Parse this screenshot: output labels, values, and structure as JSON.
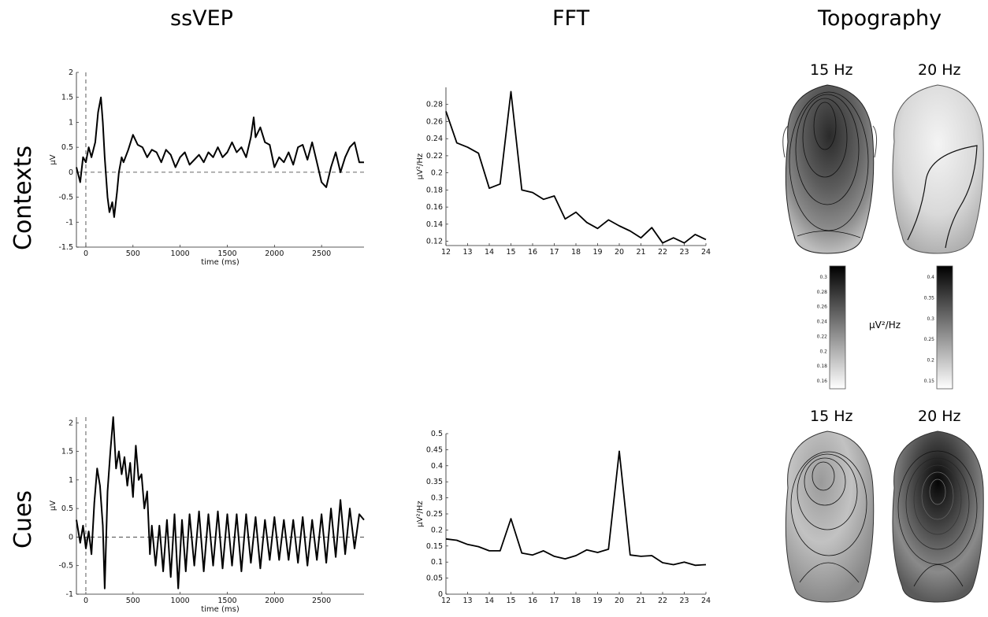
{
  "columns": {
    "ssvep": "ssVEP",
    "fft": "FFT",
    "topography": "Topography"
  },
  "rows": {
    "contexts": "Contexts",
    "cues": "Cues"
  },
  "topography": {
    "contexts_left_freq": "15 Hz",
    "contexts_right_freq": "20 Hz",
    "cues_left_freq": "15 Hz",
    "cues_right_freq": "20 Hz",
    "colorbar_unit": "µV²/Hz",
    "colorbar_left_ticks": [
      "0.3",
      "0.28",
      "0.26",
      "0.24",
      "0.22",
      "0.2",
      "0.18",
      "0.16"
    ],
    "colorbar_right_ticks": [
      "0.4",
      "0.35",
      "0.3",
      "0.25",
      "0.2",
      "0.15"
    ]
  },
  "chart_data": [
    {
      "id": "contexts_ssvep",
      "type": "line",
      "xlabel": "time (ms)",
      "ylabel": "µV",
      "xlim": [
        -100,
        2950
      ],
      "ylim": [
        -1.5,
        2
      ],
      "xticks": [
        0,
        500,
        1000,
        1500,
        2000,
        2500
      ],
      "yticks": [
        -1.5,
        -1,
        -0.5,
        0,
        0.5,
        1,
        1.5,
        2
      ],
      "reference_lines": {
        "y": 0,
        "x": 0
      },
      "series": [
        {
          "x": [
            -100,
            -60,
            -30,
            0,
            30,
            60,
            100,
            130,
            160,
            180,
            200,
            230,
            250,
            280,
            300,
            330,
            350,
            380,
            400,
            450,
            500,
            550,
            600,
            650,
            700,
            750,
            800,
            850,
            900,
            950,
            1000,
            1050,
            1100,
            1150,
            1200,
            1250,
            1300,
            1350,
            1400,
            1450,
            1500,
            1550,
            1600,
            1650,
            1700,
            1750,
            1780,
            1800,
            1850,
            1900,
            1950,
            2000,
            2050,
            2100,
            2150,
            2200,
            2250,
            2300,
            2350,
            2400,
            2450,
            2500,
            2550,
            2600,
            2650,
            2700,
            2750,
            2800,
            2850,
            2900,
            2950
          ],
          "y": [
            0.1,
            -0.2,
            0.3,
            0.2,
            0.5,
            0.3,
            0.6,
            1.2,
            1.5,
            1.0,
            0.3,
            -0.5,
            -0.8,
            -0.6,
            -0.9,
            -0.4,
            0.0,
            0.3,
            0.2,
            0.45,
            0.75,
            0.55,
            0.5,
            0.3,
            0.45,
            0.4,
            0.2,
            0.45,
            0.35,
            0.1,
            0.3,
            0.4,
            0.15,
            0.25,
            0.35,
            0.2,
            0.4,
            0.3,
            0.5,
            0.3,
            0.4,
            0.6,
            0.4,
            0.5,
            0.3,
            0.7,
            1.1,
            0.7,
            0.9,
            0.6,
            0.55,
            0.1,
            0.3,
            0.2,
            0.4,
            0.15,
            0.5,
            0.55,
            0.25,
            0.6,
            0.2,
            -0.2,
            -0.3,
            0.1,
            0.4,
            0.0,
            0.3,
            0.5,
            0.6,
            0.2,
            0.2
          ]
        }
      ]
    },
    {
      "id": "contexts_fft",
      "type": "line",
      "xlabel": "",
      "ylabel": "µV²/Hz",
      "xlim": [
        12,
        24
      ],
      "ylim": [
        0.115,
        0.3
      ],
      "xticks": [
        12,
        13,
        14,
        15,
        16,
        17,
        18,
        19,
        20,
        21,
        22,
        23,
        24
      ],
      "yticks": [
        0.12,
        0.14,
        0.16,
        0.18,
        0.2,
        0.22,
        0.24,
        0.26,
        0.28
      ],
      "series": [
        {
          "x": [
            12,
            12.5,
            13,
            13.5,
            14,
            14.5,
            15,
            15.5,
            16,
            16.5,
            17,
            17.5,
            18,
            18.5,
            19,
            19.5,
            20,
            20.5,
            21,
            21.5,
            22,
            22.5,
            23,
            23.5,
            24
          ],
          "y": [
            0.272,
            0.235,
            0.23,
            0.223,
            0.182,
            0.187,
            0.295,
            0.18,
            0.177,
            0.169,
            0.173,
            0.146,
            0.154,
            0.142,
            0.135,
            0.145,
            0.138,
            0.132,
            0.124,
            0.136,
            0.118,
            0.124,
            0.118,
            0.128,
            0.122
          ]
        }
      ]
    },
    {
      "id": "cues_ssvep",
      "type": "line",
      "xlabel": "time (ms)",
      "ylabel": "µV",
      "xlim": [
        -100,
        2950
      ],
      "ylim": [
        -1,
        2.1
      ],
      "xticks": [
        0,
        500,
        1000,
        1500,
        2000,
        2500
      ],
      "yticks": [
        -1,
        -0.5,
        0,
        0.5,
        1,
        1.5,
        2
      ],
      "reference_lines": {
        "y": 0,
        "x": 0
      },
      "series": [
        {
          "x": [
            -100,
            -60,
            -30,
            0,
            30,
            60,
            90,
            120,
            150,
            180,
            200,
            230,
            260,
            290,
            320,
            350,
            380,
            410,
            440,
            470,
            500,
            530,
            560,
            590,
            620,
            650,
            680,
            700,
            740,
            780,
            820,
            860,
            900,
            940,
            980,
            1020,
            1060,
            1100,
            1150,
            1200,
            1250,
            1300,
            1350,
            1400,
            1450,
            1500,
            1550,
            1600,
            1650,
            1700,
            1750,
            1800,
            1850,
            1900,
            1950,
            2000,
            2050,
            2100,
            2150,
            2200,
            2250,
            2300,
            2350,
            2400,
            2450,
            2500,
            2550,
            2600,
            2650,
            2700,
            2750,
            2800,
            2850,
            2900,
            2950
          ],
          "y": [
            0.3,
            -0.1,
            0.2,
            -0.2,
            0.1,
            -0.3,
            0.6,
            1.2,
            0.9,
            0.2,
            -0.9,
            0.8,
            1.5,
            2.1,
            1.2,
            1.5,
            1.1,
            1.4,
            0.9,
            1.3,
            0.7,
            1.6,
            1.0,
            1.1,
            0.5,
            0.8,
            -0.3,
            0.2,
            -0.5,
            0.2,
            -0.6,
            0.3,
            -0.7,
            0.4,
            -0.9,
            0.3,
            -0.6,
            0.4,
            -0.5,
            0.45,
            -0.6,
            0.4,
            -0.5,
            0.45,
            -0.55,
            0.4,
            -0.5,
            0.4,
            -0.6,
            0.4,
            -0.45,
            0.35,
            -0.55,
            0.3,
            -0.4,
            0.35,
            -0.4,
            0.3,
            -0.4,
            0.3,
            -0.45,
            0.35,
            -0.5,
            0.3,
            -0.4,
            0.4,
            -0.45,
            0.5,
            -0.35,
            0.65,
            -0.3,
            0.5,
            -0.2,
            0.4,
            0.3
          ]
        }
      ]
    },
    {
      "id": "cues_fft",
      "type": "line",
      "xlabel": "",
      "ylabel": "µV²/Hz",
      "xlim": [
        12,
        24
      ],
      "ylim": [
        0,
        0.5
      ],
      "xticks": [
        12,
        13,
        14,
        15,
        16,
        17,
        18,
        19,
        20,
        21,
        22,
        23,
        24
      ],
      "yticks": [
        0,
        0.05,
        0.1,
        0.15,
        0.2,
        0.25,
        0.3,
        0.35,
        0.4,
        0.45,
        0.5
      ],
      "series": [
        {
          "x": [
            12,
            12.5,
            13,
            13.5,
            14,
            14.5,
            15,
            15.5,
            16,
            16.5,
            17,
            17.5,
            18,
            18.5,
            19,
            19.5,
            20,
            20.5,
            21,
            21.5,
            22,
            22.5,
            23,
            23.5,
            24
          ],
          "y": [
            0.172,
            0.168,
            0.155,
            0.148,
            0.135,
            0.135,
            0.235,
            0.128,
            0.122,
            0.135,
            0.118,
            0.11,
            0.12,
            0.138,
            0.13,
            0.14,
            0.445,
            0.122,
            0.118,
            0.12,
            0.098,
            0.092,
            0.1,
            0.09,
            0.092
          ]
        }
      ]
    }
  ]
}
